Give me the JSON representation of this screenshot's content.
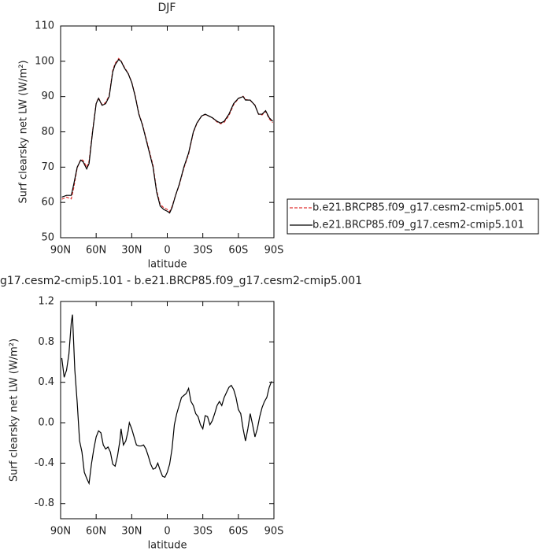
{
  "chart_data": [
    {
      "type": "line",
      "title": "DJF",
      "ylabel": "Surf clearsky net LW (W/m²)",
      "xlabel": "latitude",
      "x": [
        89,
        85,
        81,
        79,
        76,
        73,
        71,
        68,
        66,
        63,
        60,
        58,
        55,
        52,
        49,
        46,
        44,
        41,
        39,
        36,
        33,
        30,
        27,
        24,
        21,
        18,
        15,
        12,
        9,
        6,
        3,
        0,
        -2,
        -4,
        -7,
        -10,
        -14,
        -18,
        -22,
        -25,
        -29,
        -32,
        -35,
        -38,
        -42,
        -45,
        -48,
        -52,
        -56,
        -60,
        -64,
        -66,
        -70,
        -74,
        -77,
        -80,
        -83,
        -86,
        -89
      ],
      "series": [
        {
          "name": "b.e21.BRCP85.f09_g17.cesm2-cmip5.001",
          "color": "#e03030",
          "dash": true,
          "values": [
            60.9,
            61.5,
            61,
            64,
            69.8,
            72.2,
            71.9,
            70,
            71.6,
            80.3,
            88.1,
            89.6,
            87.7,
            88.3,
            90.3,
            97.4,
            99.4,
            100.8,
            100.1,
            98.2,
            96.6,
            94.1,
            90.2,
            85.2,
            82.2,
            78.3,
            74.4,
            70.5,
            63.4,
            59.5,
            58.5,
            58,
            57.4,
            58.8,
            62,
            64.8,
            69.7,
            73.7,
            79.8,
            82.4,
            84.5,
            84.9,
            84.5,
            84,
            82.8,
            82.3,
            82.7,
            84.6,
            87.7,
            89.4,
            90.1,
            89.2,
            88.9,
            87.6,
            85,
            84.8,
            85.8,
            83.7,
            82.6
          ]
        },
        {
          "name": "b.e21.BRCP85.f09_g17.cesm2-cmip5.101",
          "color": "#000000",
          "dash": false,
          "values": [
            61.5,
            62,
            62,
            65,
            70,
            72,
            71.5,
            69.5,
            71,
            80,
            88,
            89.5,
            87.5,
            88,
            90,
            97,
            99,
            100.5,
            100,
            98,
            96.5,
            94,
            90,
            85,
            82,
            78,
            74,
            70,
            63,
            59,
            58,
            57.5,
            57,
            58.5,
            62,
            65,
            70,
            74,
            80,
            82.5,
            84.5,
            85,
            84.5,
            84,
            83,
            82.5,
            83,
            85,
            88,
            89.5,
            90,
            89,
            89,
            87.5,
            85,
            85,
            86,
            84,
            83
          ]
        }
      ],
      "xlim": [
        90,
        -90
      ],
      "xticks": [
        {
          "value": 90,
          "label": "90N"
        },
        {
          "value": 60,
          "label": "60N"
        },
        {
          "value": 30,
          "label": "30N"
        },
        0,
        {
          "value": -30,
          "label": "30S"
        },
        {
          "value": -60,
          "label": "60S"
        },
        {
          "value": -90,
          "label": "90S"
        }
      ],
      "ylim": [
        50,
        110
      ],
      "yticks": [
        50,
        60,
        70,
        80,
        90,
        100,
        110
      ],
      "legend": "right"
    },
    {
      "type": "line",
      "title": "g17.cesm2-cmip5.101 - b.e21.BRCP85.f09_g17.cesm2-cmip5.001",
      "ylabel": "Surf clearsky net LW (W/m²)",
      "xlabel": "latitude",
      "x": [
        89,
        87,
        85,
        83,
        81,
        80,
        78,
        76,
        74,
        72,
        70,
        68,
        66,
        64,
        62,
        60,
        58,
        56,
        54,
        52,
        50,
        48,
        46,
        44,
        42,
        40,
        39,
        37,
        35,
        33,
        32,
        30,
        28,
        26,
        24,
        22,
        20,
        18,
        16,
        14,
        12,
        10,
        8,
        6,
        4,
        2,
        0,
        -2,
        -4,
        -6,
        -8,
        -10,
        -12,
        -14,
        -16,
        -18,
        -20,
        -22,
        -24,
        -26,
        -28,
        -30,
        -32,
        -34,
        -36,
        -38,
        -40,
        -42,
        -44,
        -46,
        -48,
        -50,
        -52,
        -54,
        -56,
        -58,
        -60,
        -62,
        -64,
        -66,
        -68,
        -70,
        -72,
        -74,
        -76,
        -78,
        -80,
        -82,
        -84,
        -86,
        -88
      ],
      "series": [
        {
          "color": "#000000",
          "dash": false,
          "values": [
            0.64,
            0.45,
            0.52,
            0.68,
            0.99,
            1.07,
            0.52,
            0.2,
            -0.18,
            -0.29,
            -0.49,
            -0.55,
            -0.6,
            -0.41,
            -0.26,
            -0.14,
            -0.08,
            -0.1,
            -0.22,
            -0.26,
            -0.24,
            -0.29,
            -0.41,
            -0.43,
            -0.33,
            -0.18,
            -0.06,
            -0.22,
            -0.18,
            -0.08,
            0.0,
            -0.06,
            -0.14,
            -0.22,
            -0.23,
            -0.23,
            -0.22,
            -0.26,
            -0.33,
            -0.41,
            -0.46,
            -0.45,
            -0.4,
            -0.47,
            -0.53,
            -0.54,
            -0.49,
            -0.41,
            -0.26,
            -0.02,
            0.09,
            0.17,
            0.25,
            0.27,
            0.29,
            0.34,
            0.21,
            0.17,
            0.09,
            0.06,
            -0.02,
            -0.06,
            0.07,
            0.06,
            -0.02,
            0.02,
            0.09,
            0.17,
            0.21,
            0.17,
            0.25,
            0.3,
            0.35,
            0.37,
            0.33,
            0.25,
            0.13,
            0.09,
            -0.06,
            -0.18,
            -0.06,
            0.09,
            -0.02,
            -0.14,
            -0.06,
            0.06,
            0.15,
            0.21,
            0.25,
            0.35,
            0.41
          ]
        }
      ],
      "xlim": [
        90,
        -90
      ],
      "xticks": [
        {
          "value": 90,
          "label": "90N"
        },
        {
          "value": 60,
          "label": "60N"
        },
        {
          "value": 30,
          "label": "30N"
        },
        0,
        {
          "value": -30,
          "label": "30S"
        },
        {
          "value": -60,
          "label": "60S"
        },
        {
          "value": -90,
          "label": "90S"
        }
      ],
      "ylim": [
        -0.95,
        1.2
      ],
      "yticks": [
        -0.8,
        -0.4,
        {
          "value": 0,
          "label": "0.0"
        },
        0.4,
        0.8,
        1.2
      ]
    }
  ]
}
